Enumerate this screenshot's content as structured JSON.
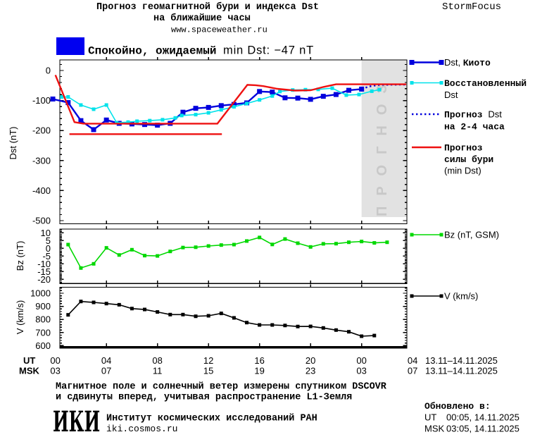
{
  "header": {
    "title_line1": "Прогноз геомагнитной бури и индекса Dst",
    "title_line2": "на ближайшие часы",
    "website": "www.spaceweather.ru",
    "brand": "StormFocus",
    "status": {
      "swatch_color": "#0000f0",
      "text_cyr": "Спокойно, ожидаемый ",
      "text_lat": "min Dst: −47 nT"
    }
  },
  "chart_data": [
    {
      "type": "line",
      "panel": "dst",
      "ylabel": "Dst (nT)",
      "ylim": [
        -510,
        35
      ],
      "yticks": [
        0,
        -100,
        -200,
        -300,
        -400,
        -500
      ],
      "xlim_hours": [
        0.35,
        27.55
      ],
      "forecast_region": {
        "start_hour": 24,
        "label": "ПРОГНОЗ"
      },
      "series": [
        {
          "key": "kyoto",
          "name": "Dst, Киото",
          "color": "#0000dd",
          "marker": "square",
          "marker_size": 7,
          "line_width": 2.4,
          "points": [
            [
              -0.2,
              -95
            ],
            [
              1,
              -107
            ],
            [
              2,
              -167
            ],
            [
              3,
              -197
            ],
            [
              4,
              -165
            ],
            [
              5,
              -176
            ],
            [
              6,
              -178
            ],
            [
              7,
              -180
            ],
            [
              8,
              -182
            ],
            [
              9,
              -176
            ],
            [
              10,
              -139
            ],
            [
              11,
              -126
            ],
            [
              12,
              -123
            ],
            [
              13,
              -117
            ],
            [
              14,
              -113
            ],
            [
              15,
              -108
            ],
            [
              16,
              -70
            ],
            [
              17,
              -72
            ],
            [
              18,
              -91
            ],
            [
              19,
              -92
            ],
            [
              20,
              -96
            ],
            [
              21,
              -86
            ],
            [
              22,
              -80
            ],
            [
              23,
              -66
            ],
            [
              24,
              -62
            ]
          ]
        },
        {
          "key": "recon",
          "name": "Восстановленный Dst",
          "color": "#00e2ea",
          "marker": "square",
          "marker_size": 5,
          "line_width": 1.6,
          "points": [
            [
              0.5,
              -88
            ],
            [
              1,
              -88
            ],
            [
              2,
              -115
            ],
            [
              3,
              -129
            ],
            [
              4,
              -115
            ],
            [
              4.8,
              -174
            ],
            [
              5.7,
              -172
            ],
            [
              6.4,
              -169
            ],
            [
              7.4,
              -167
            ],
            [
              8.4,
              -164
            ],
            [
              9.4,
              -158
            ],
            [
              9.9,
              -150
            ],
            [
              11,
              -147
            ],
            [
              12,
              -141
            ],
            [
              13,
              -131
            ],
            [
              14,
              -121
            ],
            [
              15,
              -110
            ],
            [
              16,
              -98
            ],
            [
              17,
              -85
            ],
            [
              17.6,
              -70
            ],
            [
              18.6,
              -65
            ],
            [
              19.6,
              -64
            ],
            [
              20.6,
              -63
            ],
            [
              21.7,
              -59
            ],
            [
              22.8,
              -82
            ],
            [
              23.8,
              -80
            ],
            [
              24.8,
              -69
            ],
            [
              25.4,
              -64
            ]
          ]
        },
        {
          "key": "fcst",
          "name": "Прогноз Dst на 2-4 часа",
          "color": "#0000dd",
          "marker": "none",
          "line_width": 2.4,
          "dash": "2.4 3.6",
          "points": [
            [
              24,
              -62
            ],
            [
              24.6,
              -53
            ],
            [
              25.4,
              -48
            ],
            [
              27.5,
              -47
            ]
          ]
        },
        {
          "key": "storm",
          "name": "Прогноз силы бури (min Dst)",
          "color": "#ee1111",
          "marker": "none",
          "line_width": 2.4,
          "points": [
            [
              0,
              -15
            ],
            [
              1.5,
              -172
            ],
            [
              2.2,
              -177
            ],
            [
              12.7,
              -177
            ],
            [
              15.05,
              -48
            ],
            [
              15.7,
              -49
            ],
            [
              16.3,
              -52
            ],
            [
              17.4,
              -61
            ],
            [
              18.8,
              -67
            ],
            [
              20,
              -66
            ],
            [
              21,
              -55
            ],
            [
              22,
              -46
            ],
            [
              27.5,
              -46
            ]
          ]
        },
        {
          "key": "storm_prev",
          "name": "Прогноз силы бури (предыдущий)",
          "color": "#ee1111",
          "marker": "none",
          "line_width": 2.4,
          "points": [
            [
              1.1,
              -212
            ],
            [
              13.05,
              -212
            ]
          ]
        }
      ]
    },
    {
      "type": "line",
      "panel": "bz",
      "ylabel": "Bz (nT)",
      "ylim": [
        -22.6,
        12.4
      ],
      "yticks": [
        10,
        5,
        0,
        -5,
        -10,
        -15,
        -20
      ],
      "series": [
        {
          "key": "bz",
          "name": "Bz (nT, GSM)",
          "color": "#00d800",
          "marker": "square",
          "marker_size": 5,
          "line_width": 1.6,
          "points": [
            [
              1,
              2.4
            ],
            [
              2,
              -12.7
            ],
            [
              3,
              -10
            ],
            [
              4,
              0.3
            ],
            [
              5,
              -4.3
            ],
            [
              6,
              -0.9
            ],
            [
              7,
              -4.7
            ],
            [
              8,
              -4.9
            ],
            [
              9,
              -2
            ],
            [
              10,
              0.5
            ],
            [
              11,
              0.7
            ],
            [
              12,
              1.5
            ],
            [
              13,
              2.1
            ],
            [
              14,
              2.4
            ],
            [
              15,
              4.7
            ],
            [
              16,
              7
            ],
            [
              17,
              2.5
            ],
            [
              18,
              6
            ],
            [
              19,
              3.3
            ],
            [
              20,
              0.9
            ],
            [
              21,
              2.9
            ],
            [
              22,
              3
            ],
            [
              23,
              3.9
            ],
            [
              24,
              4.4
            ],
            [
              25,
              3.5
            ],
            [
              26,
              3.9
            ]
          ]
        }
      ]
    },
    {
      "type": "line",
      "panel": "v",
      "ylabel": "V (km/s)",
      "ylim": [
        594,
        1046
      ],
      "yticks": [
        1000,
        900,
        800,
        700,
        600
      ],
      "series": [
        {
          "key": "v",
          "name": "V (km/s)",
          "color": "#000000",
          "marker": "square",
          "marker_size": 5,
          "line_width": 1.6,
          "points": [
            [
              1,
              835
            ],
            [
              2,
              937
            ],
            [
              3,
              930
            ],
            [
              4,
              921
            ],
            [
              5,
              912
            ],
            [
              6,
              883
            ],
            [
              7,
              876
            ],
            [
              8,
              857
            ],
            [
              9,
              837
            ],
            [
              10,
              837
            ],
            [
              11,
              824
            ],
            [
              12,
              828
            ],
            [
              13,
              846
            ],
            [
              14,
              812
            ],
            [
              15,
              776
            ],
            [
              16,
              758
            ],
            [
              17,
              758
            ],
            [
              18,
              754
            ],
            [
              19,
              746
            ],
            [
              20,
              747
            ],
            [
              21,
              735
            ],
            [
              22,
              719
            ],
            [
              23,
              706
            ],
            [
              24,
              672
            ],
            [
              25,
              677
            ]
          ]
        }
      ]
    }
  ],
  "xaxis": {
    "ut_prefix": "UT",
    "msk_prefix": "MSK",
    "columns": [
      {
        "h": 0,
        "ut": "00",
        "msk": "03"
      },
      {
        "h": 4,
        "ut": "04",
        "msk": "07"
      },
      {
        "h": 8,
        "ut": "08",
        "msk": "11"
      },
      {
        "h": 12,
        "ut": "12",
        "msk": "15"
      },
      {
        "h": 16,
        "ut": "16",
        "msk": "19"
      },
      {
        "h": 20,
        "ut": "20",
        "msk": "23"
      },
      {
        "h": 24,
        "ut": "00",
        "msk": "03"
      },
      {
        "h": 28,
        "ut": "04",
        "msk": "07"
      }
    ],
    "date_ut": "13.11–14.11.2025",
    "date_msk": "13.11–14.11.2025",
    "major_ticks": [
      4,
      8,
      12,
      16,
      20,
      24
    ]
  },
  "legend": {
    "kyoto": {
      "lines": [
        [
          {
            "t": "Dst, ",
            "f": "lat"
          },
          {
            "t": "Киото",
            "f": "cyr"
          }
        ]
      ]
    },
    "recon": {
      "lines": [
        [
          {
            "t": "Восстановленный",
            "f": "cyr"
          }
        ],
        [
          {
            "t": "Dst",
            "f": "lat"
          }
        ]
      ]
    },
    "fcst": {
      "lines": [
        [
          {
            "t": "Прогноз ",
            "f": "cyr"
          },
          {
            "t": "Dst",
            "f": "lat"
          }
        ],
        [
          {
            "t": "на 2-4 часа",
            "f": "cyr"
          }
        ]
      ]
    },
    "storm": {
      "lines": [
        [
          {
            "t": "Прогноз",
            "f": "cyr"
          }
        ],
        [
          {
            "t": "силы бури",
            "f": "cyr"
          }
        ],
        [
          {
            "t": "(min Dst)",
            "f": "lat"
          }
        ]
      ]
    },
    "bz": {
      "lines": [
        [
          {
            "t": "Bz (nT, GSM)",
            "f": "lat"
          }
        ]
      ]
    },
    "v": {
      "lines": [
        [
          {
            "t": "V (km/s)",
            "f": "lat"
          }
        ]
      ]
    }
  },
  "footer": {
    "note_line1": "Магнитное поле и солнечный ветер измерены спутником DSCOVR",
    "note_line2": "и сдвинуты вперед, учитывая распространение L1-Земля",
    "updated_label": "Обновлено в:",
    "updated_ut_label": "UT",
    "updated_ut_value": "00:05, 14.11.2025",
    "updated_msk_label": "MSK",
    "updated_msk_value": "03:05, 14.11.2025",
    "logo_text": "ИКИ",
    "org_name": "Институт космических исследований РАН",
    "org_site": "iki.cosmos.ru"
  }
}
